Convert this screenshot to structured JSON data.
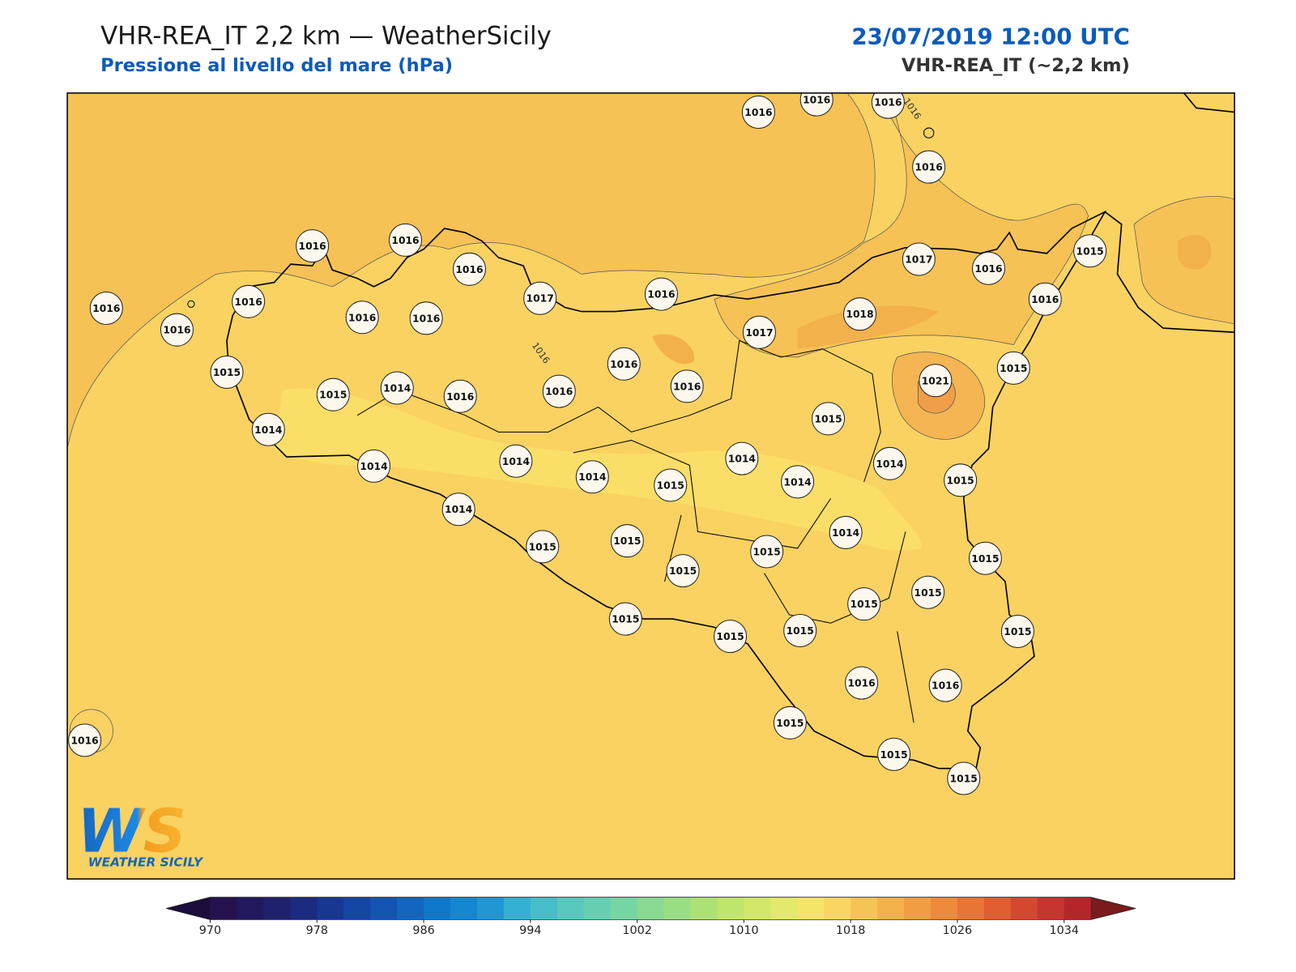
{
  "header": {
    "title": "VHR-REA_IT 2,2 km — WeatherSicily",
    "subtitle": "Pressione al livello del mare (hPa)",
    "datetime": "23/07/2019 12:00 UTC",
    "model": "VHR-REA_IT (~2,2 km)"
  },
  "logo": {
    "mark": "WS",
    "text": "WEATHER SICILY"
  },
  "contour_labels": [
    1016,
    1016
  ],
  "stations": {
    "values": [
      1016,
      1016,
      1016,
      1016,
      1016,
      1016,
      1016,
      1017,
      1016,
      1017,
      1016,
      1015,
      1016,
      1016,
      1016,
      1016,
      1016,
      1018,
      1017,
      1016,
      1016,
      1015,
      1021,
      1015,
      1015,
      1014,
      1016,
      1016,
      1016,
      1015,
      1014,
      1014,
      1014,
      1014,
      1015,
      1014,
      1014,
      1014,
      1015,
      1014,
      1015,
      1015,
      1015,
      1015,
      1014,
      1015,
      1015,
      1015,
      1015,
      1015,
      1015,
      1015,
      1016,
      1016,
      1015,
      1015,
      1015,
      1016
    ]
  },
  "colorbar": {
    "clim": [
      970,
      1036
    ],
    "ticks": [
      970,
      978,
      986,
      994,
      1002,
      1010,
      1018,
      1026,
      1034
    ],
    "colors": [
      "#24124f",
      "#22185e",
      "#1f216c",
      "#1b2b7f",
      "#173791",
      "#1446a4",
      "#1354b3",
      "#1365bf",
      "#0f78cb",
      "#1587cf",
      "#2296d2",
      "#35b0d2",
      "#48bdca",
      "#58c7be",
      "#66cfb2",
      "#76d5a3",
      "#88da92",
      "#9ade83",
      "#ade176",
      "#c0e56c",
      "#d2e769",
      "#e2e96c",
      "#f5e46a",
      "#f9d564",
      "#f6c357",
      "#f3b14b",
      "#f09e43",
      "#ed8a3c",
      "#e87436",
      "#e05e32",
      "#d44830",
      "#c6352e",
      "#b4262a"
    ],
    "under": "#1c0d3c",
    "over": "#7a1b1d"
  }
}
